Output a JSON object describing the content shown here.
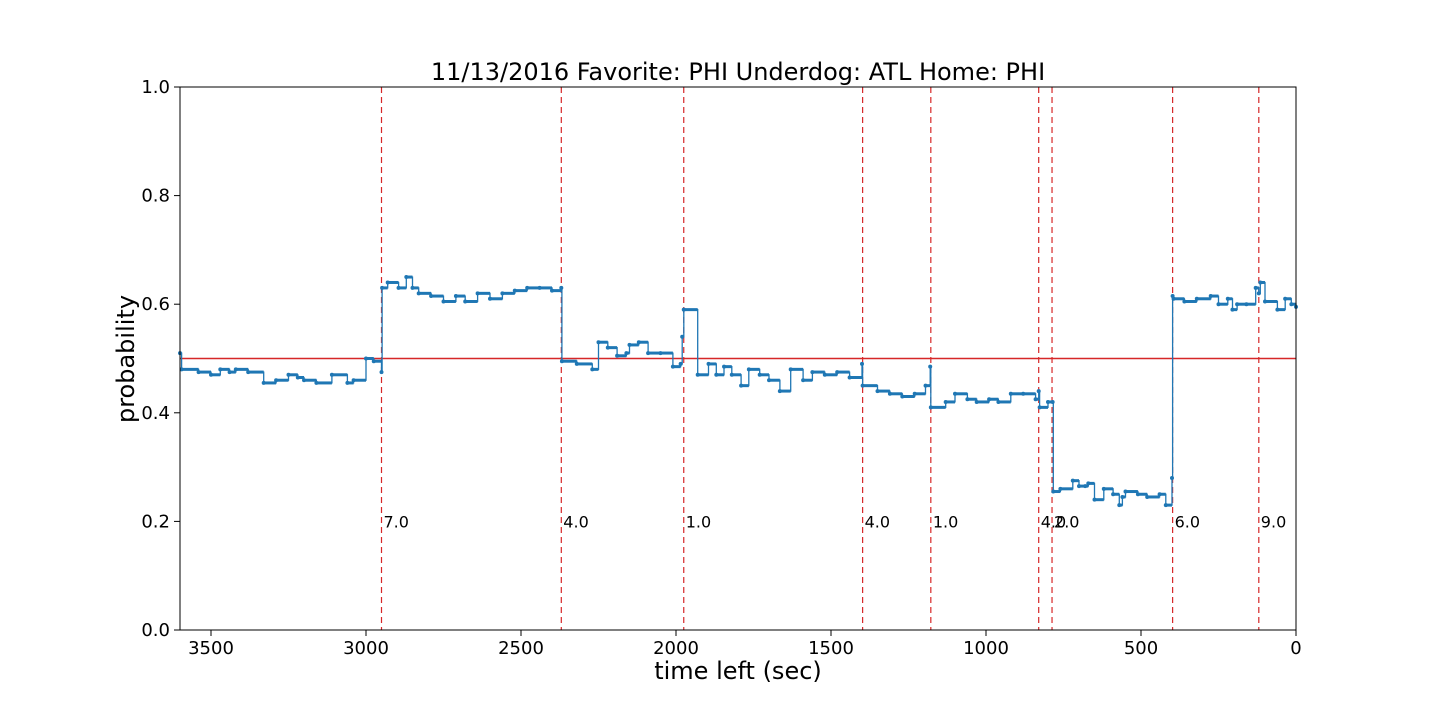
{
  "chart_data": {
    "type": "line",
    "title": "11/13/2016 Favorite: PHI Underdog: ATL Home: PHI",
    "xlabel": "time left (sec)",
    "ylabel": "probability",
    "xlim": [
      3600,
      0
    ],
    "ylim": [
      0.0,
      1.0
    ],
    "x_ticks": [
      3500,
      3000,
      2500,
      2000,
      1500,
      1000,
      500,
      0
    ],
    "y_ticks": [
      0.0,
      0.2,
      0.4,
      0.6,
      0.8,
      1.0
    ],
    "grid": false,
    "reference_line": {
      "y": 0.5,
      "color": "#d62728"
    },
    "series": [
      {
        "color": "#1f77b4",
        "step": true,
        "x": [
          3600,
          3595,
          3540,
          3500,
          3470,
          3440,
          3420,
          3380,
          3330,
          3290,
          3250,
          3220,
          3200,
          3160,
          3110,
          3060,
          3040,
          3000,
          2975,
          2950,
          2948,
          2930,
          2895,
          2870,
          2850,
          2830,
          2790,
          2750,
          2710,
          2680,
          2640,
          2600,
          2560,
          2520,
          2480,
          2440,
          2400,
          2370,
          2368,
          2320,
          2270,
          2250,
          2220,
          2190,
          2160,
          2150,
          2120,
          2090,
          2050,
          2010,
          1985,
          1980,
          1975,
          1930,
          1895,
          1870,
          1845,
          1820,
          1790,
          1765,
          1730,
          1700,
          1665,
          1630,
          1590,
          1560,
          1520,
          1480,
          1440,
          1400,
          1398,
          1350,
          1310,
          1270,
          1230,
          1195,
          1180,
          1178,
          1130,
          1100,
          1060,
          1030,
          990,
          960,
          920,
          880,
          840,
          830,
          827,
          800,
          785,
          783,
          760,
          720,
          700,
          680,
          670,
          650,
          620,
          590,
          570,
          560,
          550,
          510,
          480,
          440,
          420,
          400,
          398,
          395,
          360,
          320,
          275,
          250,
          220,
          205,
          190,
          160,
          130,
          120,
          115,
          100,
          60,
          35,
          15,
          0
        ],
        "y": [
          0.51,
          0.48,
          0.475,
          0.47,
          0.48,
          0.475,
          0.48,
          0.475,
          0.455,
          0.46,
          0.47,
          0.465,
          0.46,
          0.455,
          0.47,
          0.455,
          0.46,
          0.5,
          0.495,
          0.475,
          0.63,
          0.64,
          0.63,
          0.65,
          0.63,
          0.62,
          0.615,
          0.605,
          0.615,
          0.605,
          0.62,
          0.61,
          0.62,
          0.625,
          0.63,
          0.63,
          0.625,
          0.63,
          0.495,
          0.49,
          0.48,
          0.53,
          0.52,
          0.505,
          0.51,
          0.525,
          0.53,
          0.51,
          0.51,
          0.485,
          0.49,
          0.54,
          0.59,
          0.47,
          0.49,
          0.47,
          0.485,
          0.47,
          0.45,
          0.48,
          0.47,
          0.46,
          0.44,
          0.48,
          0.46,
          0.475,
          0.47,
          0.475,
          0.465,
          0.49,
          0.45,
          0.44,
          0.435,
          0.43,
          0.435,
          0.45,
          0.485,
          0.41,
          0.42,
          0.435,
          0.425,
          0.42,
          0.425,
          0.42,
          0.435,
          0.435,
          0.425,
          0.44,
          0.41,
          0.42,
          0.42,
          0.255,
          0.26,
          0.275,
          0.265,
          0.265,
          0.27,
          0.24,
          0.26,
          0.25,
          0.23,
          0.245,
          0.255,
          0.25,
          0.245,
          0.25,
          0.23,
          0.28,
          0.615,
          0.61,
          0.605,
          0.61,
          0.615,
          0.6,
          0.61,
          0.59,
          0.6,
          0.6,
          0.63,
          0.62,
          0.64,
          0.605,
          0.59,
          0.61,
          0.6,
          0.595
        ]
      }
    ],
    "events": [
      {
        "x": 2950,
        "label": "7.0"
      },
      {
        "x": 2370,
        "label": "4.0"
      },
      {
        "x": 1975,
        "label": "1.0"
      },
      {
        "x": 1398,
        "label": "4.0"
      },
      {
        "x": 1178,
        "label": "1.0"
      },
      {
        "x": 830,
        "label": "4.0"
      },
      {
        "x": 787,
        "label": "2.0"
      },
      {
        "x": 398,
        "label": "6.0"
      },
      {
        "x": 120,
        "label": "9.0"
      }
    ],
    "event_label_y": 0.2,
    "event_line_color": "#d62728"
  }
}
